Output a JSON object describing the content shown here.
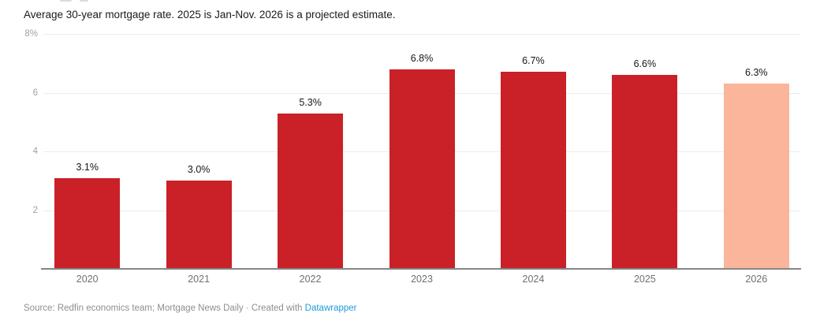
{
  "description": "Average 30-year mortgage rate. 2025 is Jan-Nov. 2026 is a projected estimate.",
  "footer": {
    "source_prefix": "Source: Redfin economics team; Mortgage News Daily · Created with ",
    "link_label": "Datawrapper",
    "link_color": "#1d9cd8"
  },
  "chart_data": {
    "type": "bar",
    "title": "",
    "subtitle": "Average 30-year mortgage rate. 2025 is Jan-Nov. 2026 is a projected estimate.",
    "categories": [
      "2020",
      "2021",
      "2022",
      "2023",
      "2024",
      "2025",
      "2026"
    ],
    "values": [
      3.1,
      3.0,
      5.3,
      6.8,
      6.7,
      6.6,
      6.3
    ],
    "value_labels": [
      "3.1%",
      "3.0%",
      "5.3%",
      "6.8%",
      "6.7%",
      "6.6%",
      "6.3%"
    ],
    "xlabel": "",
    "ylabel": "",
    "ylim": [
      0,
      8
    ],
    "yticks": [
      {
        "value": 8,
        "label": "8%"
      },
      {
        "value": 6,
        "label": "6"
      },
      {
        "value": 4,
        "label": "4"
      },
      {
        "value": 2,
        "label": "2"
      }
    ],
    "grid": "horizontal",
    "legend_position": "none",
    "projected_index": 6,
    "colors": {
      "bar": "#c92127",
      "projected_bar": "#fab59a",
      "grid": "#ebebeb",
      "axis_line": "#868686",
      "ytick_label": "#a1a1a1",
      "xtick_label": "#6f6f6f",
      "value_label": "#161616"
    }
  }
}
